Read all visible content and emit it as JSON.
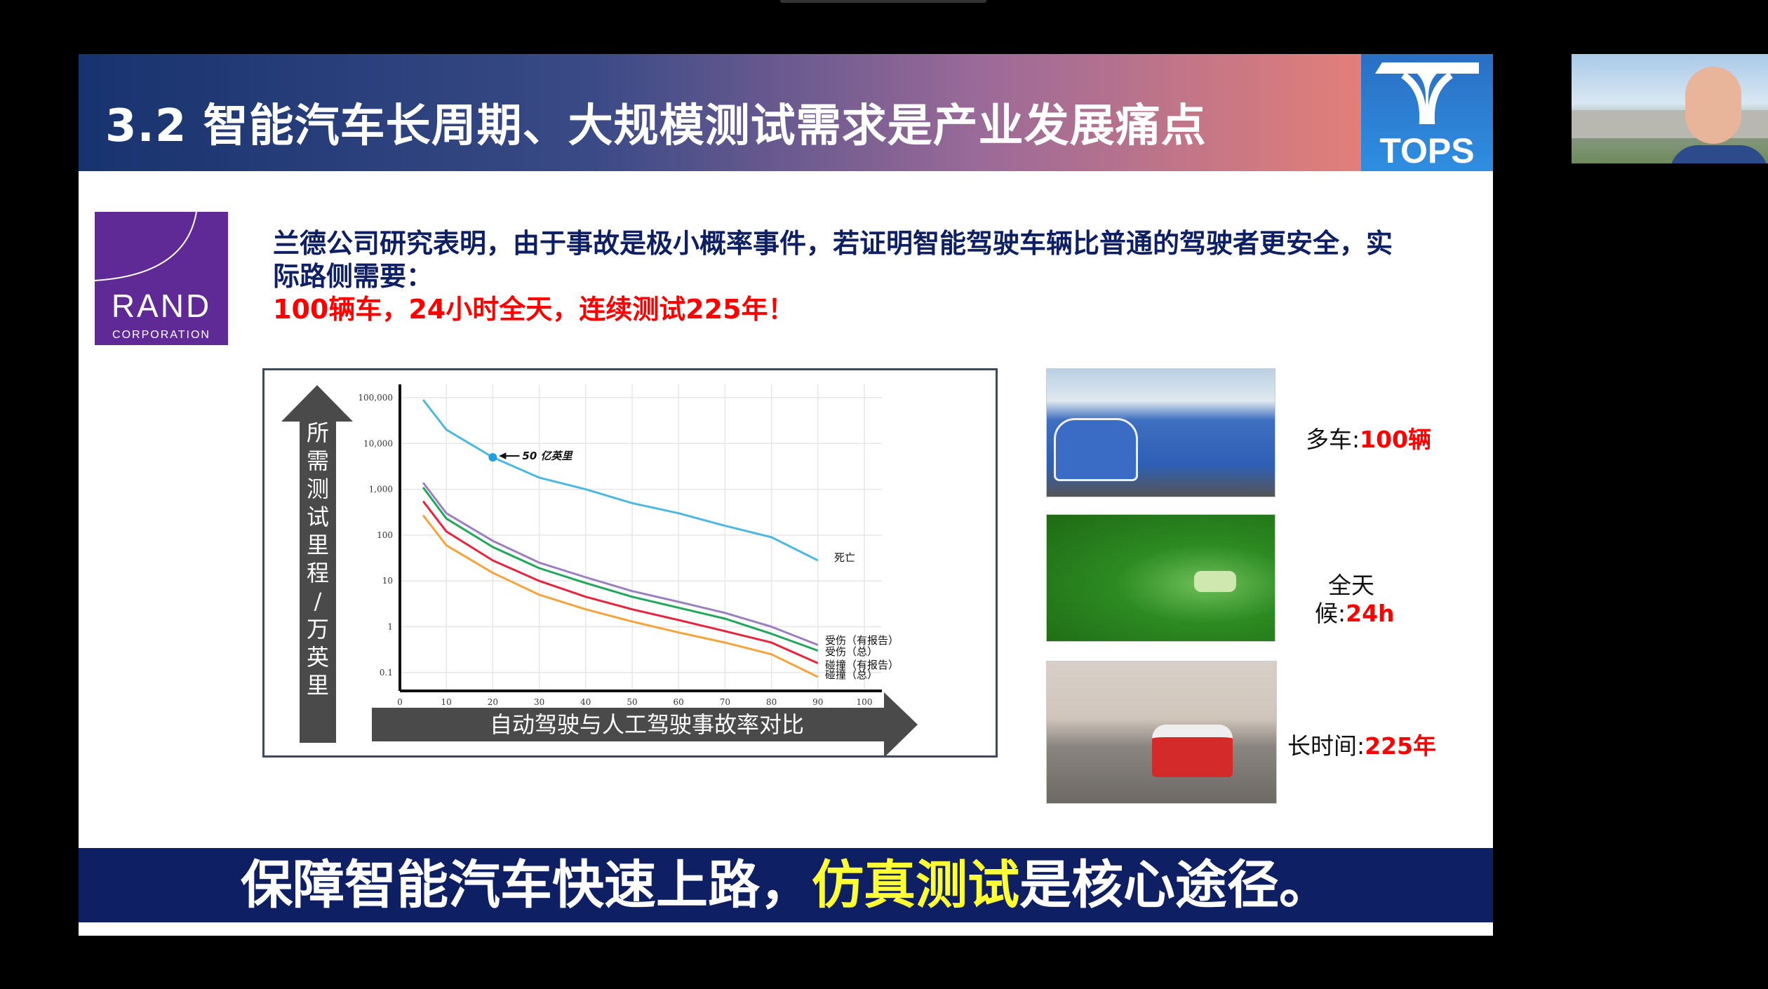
{
  "slide": {
    "title": "3.2 智能汽车长周期、大规模测试需求是产业发展痛点",
    "logo_text": "TOPS",
    "rand_logo": {
      "name": "RAND",
      "sub": "CORPORATION"
    },
    "intro_line1": "兰德公司研究表明，由于事故是极小概率事件，若证明智能驾驶车辆比普通的驾驶者更安全，实",
    "intro_line2": "际路侧需要：",
    "highlight": "100辆车，24小时全天，连续测试225年！",
    "photos": [
      {
        "label_prefix": "多车:",
        "label_value": "100辆"
      },
      {
        "label_prefix_line1": "全天",
        "label_prefix_line2": "候:",
        "label_value": "24h"
      },
      {
        "label_prefix": "长时间:",
        "label_value": "225年"
      }
    ],
    "banner": {
      "part1": "保障智能汽车快速上路，",
      "highlight": "仿真测试",
      "part2": "是核心途径。"
    },
    "colors": {
      "header_start": "#17336f",
      "header_end": "#e37f7a",
      "banner": "#0e1f63",
      "highlight_red": "#ff0000",
      "banner_highlight": "#ffff33"
    }
  },
  "webcam": {
    "caption": "speaker video"
  },
  "chart_data": {
    "type": "line",
    "ylabel": "所需测试里程/万英里",
    "xlabel": "自动驾驶与人工驾驶事故率对比",
    "y_scale": "log",
    "ylim": [
      0.1,
      100000
    ],
    "xlim": [
      0,
      100
    ],
    "x_ticks": [
      "0",
      "10",
      "20",
      "30",
      "40",
      "50",
      "60",
      "70",
      "80",
      "90",
      "100"
    ],
    "y_ticks": [
      {
        "v": 100000,
        "label": "100,000"
      },
      {
        "v": 10000,
        "label": "10,000"
      },
      {
        "v": 1000,
        "label": "1,000"
      },
      {
        "v": 100,
        "label": "100"
      },
      {
        "v": 10,
        "label": "10"
      },
      {
        "v": 1,
        "label": "1"
      },
      {
        "v": 0.1,
        "label": "0.1"
      }
    ],
    "grid": true,
    "x": [
      5,
      10,
      20,
      30,
      40,
      50,
      60,
      70,
      80,
      90
    ],
    "series": [
      {
        "name": "死亡",
        "color": "#4bb8e0",
        "values": [
          90000,
          20000,
          5000,
          1800,
          1000,
          500,
          300,
          160,
          90,
          28
        ]
      },
      {
        "name": "受伤（有报告）",
        "color": "#9b7fc0",
        "values": [
          1400,
          300,
          75,
          25,
          12,
          6,
          3.5,
          2,
          1,
          0.4
        ]
      },
      {
        "name": "受伤（总）",
        "color": "#1fa85a",
        "values": [
          1100,
          230,
          55,
          19,
          9,
          4.5,
          2.6,
          1.5,
          0.7,
          0.3
        ]
      },
      {
        "name": "碰撞（有报告）",
        "color": "#e8243c",
        "values": [
          550,
          120,
          28,
          10,
          4.5,
          2.4,
          1.4,
          0.8,
          0.45,
          0.16
        ]
      },
      {
        "name": "碰撞（总）",
        "color": "#f4a43a",
        "values": [
          270,
          60,
          15,
          5,
          2.4,
          1.3,
          0.75,
          0.45,
          0.25,
          0.08
        ]
      }
    ],
    "annotation": {
      "x": 20,
      "y": 5000,
      "text": "50 亿英里"
    }
  }
}
